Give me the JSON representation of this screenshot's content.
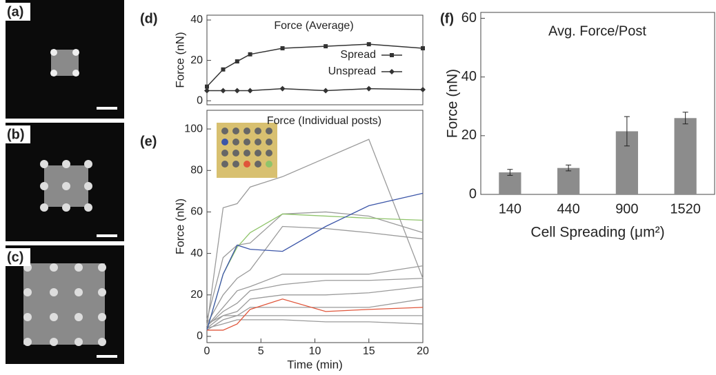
{
  "panel_labels": [
    "(a)",
    "(b)",
    "(c)",
    "(d)",
    "(e)",
    "(f)"
  ],
  "chart_data": [
    {
      "type": "line",
      "title": "Force (Average)",
      "y_label": "Force (nN)",
      "x": [
        0,
        1.5,
        2.8,
        4,
        7,
        11,
        15,
        20
      ],
      "xlim": [
        0,
        20
      ],
      "ylim": [
        -2,
        42.4
      ],
      "yticks": [
        0,
        20,
        40
      ],
      "legend": "right",
      "series": [
        {
          "name": "Spread",
          "color": "#333333",
          "marker": "square",
          "values": [
            7,
            15.5,
            19.5,
            23,
            26,
            27,
            28,
            26
          ]
        },
        {
          "name": "Unspread",
          "color": "#333333",
          "marker": "diamond",
          "values": [
            5,
            5,
            5,
            5,
            6,
            5,
            6,
            5.5
          ]
        }
      ]
    },
    {
      "type": "line",
      "title": "Force (Individual posts)",
      "y_label": "Force (nN)",
      "x_label": "Time (min)",
      "x": [
        0,
        1.5,
        2.8,
        4,
        7,
        11,
        15,
        20
      ],
      "xlim": [
        0,
        20
      ],
      "xticks": [
        0,
        5,
        10,
        15,
        20
      ],
      "ylim": [
        -3,
        109
      ],
      "yticks": [
        0,
        20,
        40,
        60,
        80,
        100
      ],
      "series": [
        {
          "color": "#9a9a9a",
          "values": [
            5,
            62,
            64,
            72,
            77,
            86,
            95,
            28
          ]
        },
        {
          "color": "#9a9a9a",
          "values": [
            8,
            38,
            44,
            45,
            59,
            60,
            58,
            50
          ]
        },
        {
          "color": "#9a9a9a",
          "values": [
            6,
            20,
            28,
            32,
            53,
            52,
            50,
            47
          ]
        },
        {
          "color": "#9a9a9a",
          "values": [
            5,
            14,
            22,
            24,
            30,
            30,
            30,
            34
          ]
        },
        {
          "color": "#9a9a9a",
          "values": [
            5,
            12,
            16,
            22,
            25,
            27,
            27,
            28
          ]
        },
        {
          "color": "#9a9a9a",
          "values": [
            4,
            10,
            12,
            18,
            20,
            20,
            21,
            24
          ]
        },
        {
          "color": "#9a9a9a",
          "values": [
            3,
            8,
            10,
            14,
            14,
            14,
            14,
            18
          ]
        },
        {
          "color": "#9a9a9a",
          "values": [
            6,
            10,
            10,
            10,
            10,
            10,
            10,
            10
          ]
        },
        {
          "color": "#9a9a9a",
          "values": [
            4,
            6,
            8,
            8,
            8,
            7,
            7,
            6
          ]
        },
        {
          "color": "#8fc46a",
          "values": [
            3,
            30,
            43,
            50,
            59,
            58,
            57,
            56
          ]
        },
        {
          "color": "#3b55a8",
          "values": [
            3,
            30,
            44,
            42,
            41,
            53,
            63,
            69
          ]
        },
        {
          "color": "#e0553a",
          "values": [
            3,
            3,
            6,
            13,
            18,
            12,
            13,
            14
          ]
        }
      ]
    },
    {
      "type": "bar",
      "title": "Avg. Force/Post",
      "y_label": "Force (nN)",
      "x_label": "Cell Spreading (μm²)",
      "categories": [
        "140",
        "440",
        "900",
        "1520"
      ],
      "values": [
        7.5,
        9,
        21.5,
        26
      ],
      "errors": [
        1,
        1,
        5,
        2
      ],
      "color": "#8c8c8c",
      "ylim": [
        0,
        62
      ],
      "yticks": [
        0,
        20,
        40,
        60
      ]
    }
  ]
}
